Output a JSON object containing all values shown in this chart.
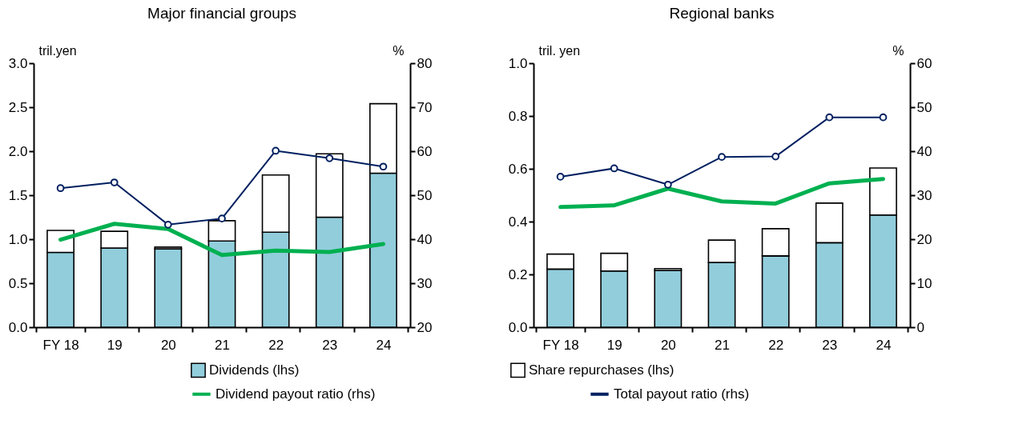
{
  "chart_data": [
    {
      "type": "bar",
      "title": "Major financial groups",
      "ylabel": "tril.yen",
      "y2label": "%",
      "categories": [
        "FY 18",
        "19",
        "20",
        "21",
        "22",
        "23",
        "24"
      ],
      "stacked": true,
      "legend": "bottom",
      "grid": false,
      "ylim": [
        0,
        3
      ],
      "yticks": [
        {
          "value": 0,
          "label": "0.0"
        },
        0.5,
        {
          "value": 1,
          "label": "1.0"
        },
        1.5,
        {
          "value": 2,
          "label": "2.0"
        },
        2.5,
        {
          "value": 3,
          "label": "3.0"
        }
      ],
      "y2lim": [
        20,
        80
      ],
      "y2ticks": [
        20,
        30,
        40,
        50,
        60,
        70,
        80
      ],
      "series": [
        {
          "name": "Dividends (lhs)",
          "color": "#92cddc",
          "values": [
            0.85,
            0.9,
            0.89,
            0.98,
            1.08,
            1.25,
            1.75
          ]
        },
        {
          "name": "Share repurchases (lhs)",
          "color": "#ffffff",
          "values": [
            0.25,
            0.19,
            0.02,
            0.23,
            0.65,
            0.72,
            0.79
          ]
        },
        {
          "name": "Dividend payout ratio (rhs)",
          "type": "line",
          "axis": "y2",
          "color": "#00b050",
          "marker": "none",
          "values": [
            39.9,
            43.5,
            42.3,
            36.4,
            37.4,
            37.1,
            38.9
          ]
        },
        {
          "name": "Total payout ratio (rhs)",
          "type": "line",
          "axis": "y2",
          "color": "#002060",
          "marker": "circle",
          "values": [
            51.6,
            52.9,
            43.3,
            44.7,
            60.1,
            58.4,
            56.5
          ]
        }
      ]
    },
    {
      "type": "bar",
      "title": "Regional banks",
      "ylabel": "tril. yen",
      "y2label": "%",
      "categories": [
        "FY 18",
        "19",
        "20",
        "21",
        "22",
        "23",
        "24"
      ],
      "stacked": true,
      "legend": "bottom",
      "grid": false,
      "ylim": [
        0,
        1
      ],
      "yticks": [
        {
          "value": 0,
          "label": "0.0"
        },
        0.2,
        0.4,
        0.6,
        0.8,
        {
          "value": 1,
          "label": "1.0"
        }
      ],
      "y2lim": [
        0,
        60
      ],
      "y2ticks": [
        0,
        10,
        20,
        30,
        40,
        50,
        60
      ],
      "series": [
        {
          "name": "Dividends (lhs)",
          "color": "#92cddc",
          "values": [
            0.22,
            0.213,
            0.215,
            0.245,
            0.27,
            0.32,
            0.425
          ]
        },
        {
          "name": "Share repurchases (lhs)",
          "color": "#ffffff",
          "values": [
            0.057,
            0.067,
            0.007,
            0.085,
            0.103,
            0.15,
            0.178
          ]
        },
        {
          "name": "Dividend payout ratio (rhs)",
          "type": "line",
          "axis": "y2",
          "color": "#00b050",
          "marker": "none",
          "values": [
            27.3,
            27.7,
            31.5,
            28.6,
            28.1,
            32.7,
            33.7
          ]
        },
        {
          "name": "Total payout ratio (rhs)",
          "type": "line",
          "axis": "y2",
          "color": "#002060",
          "marker": "circle",
          "values": [
            34.2,
            36.1,
            32.4,
            38.7,
            38.8,
            47.7,
            47.7
          ]
        }
      ]
    }
  ]
}
